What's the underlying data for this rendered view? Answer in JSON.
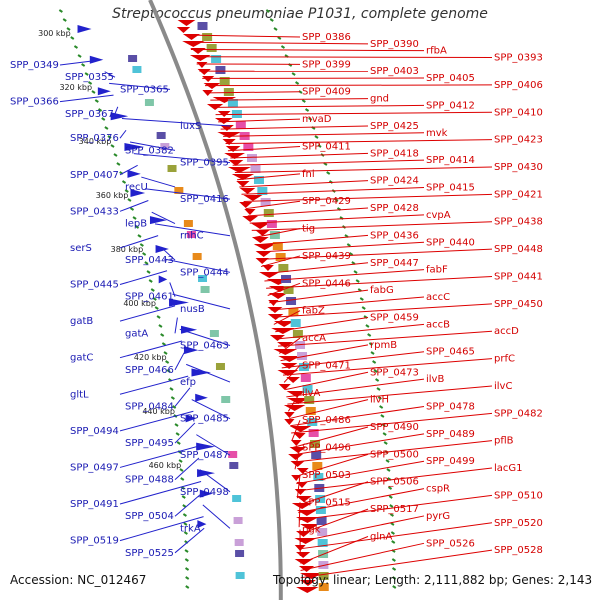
{
  "header": {
    "title": "Streptococcus pneumoniae P1031, complete genome"
  },
  "footer": {
    "accession": "Accession: NC_012467",
    "topology": "Topology: linear; Length: 2,111,882 bp; Genes: 2,143"
  },
  "colors": {
    "forward": "#2222cc",
    "reverse": "#dd0000",
    "backbone": "#8a8a8a",
    "ticks": "#2a8a2a"
  },
  "ticks": [
    "300 kbp",
    "320 kbp",
    "340 kbp",
    "360 kbp",
    "380 kbp",
    "400 kbp",
    "420 kbp",
    "440 kbp",
    "460 kbp"
  ],
  "right_labels": [
    "SPP_0386",
    "SPP_0390",
    "rfbA",
    "SPP_0393",
    "SPP_0399",
    "SPP_0403",
    "SPP_0405",
    "SPP_0406",
    "SPP_0409",
    "gnd",
    "SPP_0412",
    "SPP_0410",
    "mvaD",
    "SPP_0425",
    "mvk",
    "SPP_0423",
    "SPP_0411",
    "SPP_0418",
    "SPP_0414",
    "SPP_0430",
    "fni",
    "SPP_0424",
    "SPP_0415",
    "SPP_0421",
    "SPP_0429",
    "SPP_0428",
    "cvpA",
    "SPP_0438",
    "tig",
    "SPP_0436",
    "SPP_0440",
    "SPP_0448",
    "SPP_0439",
    "SPP_0447",
    "fabF",
    "SPP_0441",
    "SPP_0446",
    "fabG",
    "accC",
    "SPP_0450",
    "fabZ",
    "SPP_0459",
    "accB",
    "accD",
    "accA",
    "rpmB",
    "SPP_0465",
    "prfC",
    "SPP_0471",
    "SPP_0473",
    "ilvB",
    "ilvC",
    "ilvA",
    "ilvH",
    "SPP_0478",
    "SPP_0482",
    "SPP_0486",
    "SPP_0490",
    "SPP_0489",
    "pflB",
    "SPP_0496",
    "SPP_0500",
    "SPP_0499",
    "lacG1",
    "SPP_0503",
    "SPP_0506",
    "cspR",
    "SPP_0510",
    "SPP_0515",
    "SPP_0517",
    "pyrG",
    "SPP_0520",
    "pgk",
    "glnA",
    "SPP_0526",
    "SPP_0528"
  ],
  "left_labels": [
    "SPP_0349",
    "SPP_0355",
    "SPP_0365",
    "SPP_0366",
    "SPP_0367",
    "luxS",
    "SPP_0376",
    "SPP_0382",
    "SPP_0395",
    "SPP_0407",
    "recU",
    "SPP_0416",
    "SPP_0433",
    "lepB",
    "rnhC",
    "serS",
    "SPP_0443",
    "SPP_0444",
    "SPP_0445",
    "SPP_0461",
    "nusB",
    "gatB",
    "gatA",
    "SPP_0463",
    "gatC",
    "SPP_0466",
    "efp",
    "gltL",
    "SPP_0484",
    "SPP_0485",
    "SPP_0494",
    "SPP_0495",
    "SPP_0487",
    "SPP_0497",
    "SPP_0488",
    "SPP_0498",
    "SPP_0491",
    "SPP_0504",
    "trkA",
    "SPP_0519",
    "SPP_0525"
  ]
}
